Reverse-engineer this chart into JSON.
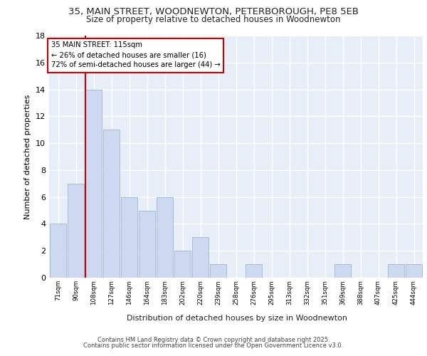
{
  "title_line1": "35, MAIN STREET, WOODNEWTON, PETERBOROUGH, PE8 5EB",
  "title_line2": "Size of property relative to detached houses in Woodnewton",
  "xlabel": "Distribution of detached houses by size in Woodnewton",
  "ylabel": "Number of detached properties",
  "categories": [
    "71sqm",
    "90sqm",
    "108sqm",
    "127sqm",
    "146sqm",
    "164sqm",
    "183sqm",
    "202sqm",
    "220sqm",
    "239sqm",
    "258sqm",
    "276sqm",
    "295sqm",
    "313sqm",
    "332sqm",
    "351sqm",
    "369sqm",
    "388sqm",
    "407sqm",
    "425sqm",
    "444sqm"
  ],
  "values": [
    4,
    7,
    14,
    11,
    6,
    5,
    6,
    2,
    3,
    1,
    0,
    1,
    0,
    0,
    0,
    0,
    1,
    0,
    0,
    1,
    1
  ],
  "bar_color": "#ccd9f0",
  "bar_edge_color": "#aabbd8",
  "red_line_index": 2,
  "annotation_text": "35 MAIN STREET: 115sqm\n← 26% of detached houses are smaller (16)\n72% of semi-detached houses are larger (44) →",
  "annotation_box_color": "#ffffff",
  "annotation_box_edge": "#cc0000",
  "ylim": [
    0,
    18
  ],
  "yticks": [
    0,
    2,
    4,
    6,
    8,
    10,
    12,
    14,
    16,
    18
  ],
  "background_color": "#e8eef8",
  "grid_color": "#ffffff",
  "footer_line1": "Contains HM Land Registry data © Crown copyright and database right 2025.",
  "footer_line2": "Contains public sector information licensed under the Open Government Licence v3.0."
}
